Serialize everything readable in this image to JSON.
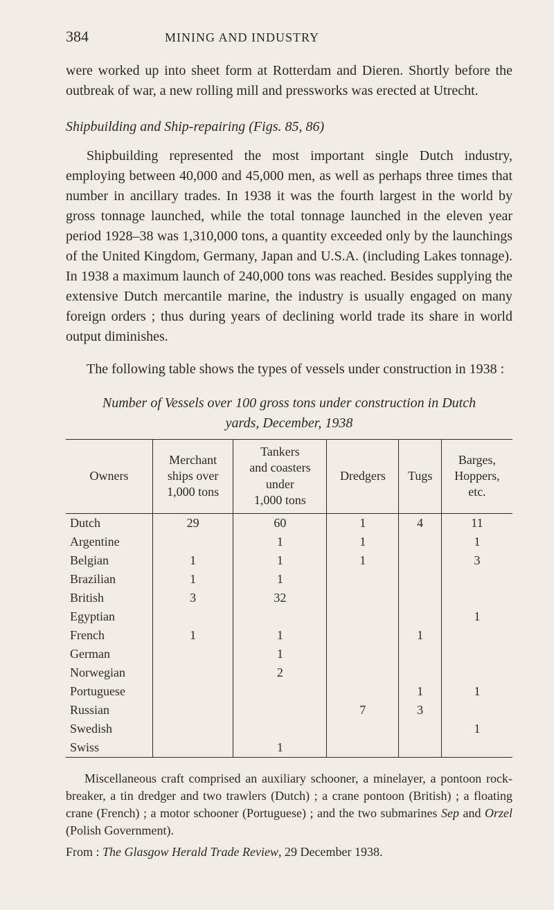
{
  "page_number": "384",
  "running_head": "MINING AND INDUSTRY",
  "para_intro": "were worked up into sheet form at Rotterdam and Dieren.   Shortly before the outbreak of war, a new rolling mill and pressworks was erected at Utrecht.",
  "section_heading_prefix": "Shipbuilding and Ship-repairing",
  "section_heading_suffix": "(Figs. 85, 86)",
  "para_body": "Shipbuilding represented the most important single Dutch industry, employing between 40,000 and 45,000 men, as well as perhaps three times that number in ancillary trades.   In 1938 it was the fourth largest in the world by gross tonnage launched, while the total tonnage launched in the eleven year period 1928–38 was 1,310,000 tons, a quantity exceeded only by the launchings of the United Kingdom, Germany, Japan and U.S.A. (including Lakes tonnage).   In 1938 a maximum launch of 240,000 tons was reached. Besides supplying the extensive Dutch mercantile marine, the industry is usually engaged on many foreign orders ;  thus during years of declining world trade its share in world output diminishes.",
  "para_body2": "The following table shows the types of vessels under construction in 1938 :",
  "table_caption": "Number of Vessels over 100 gross tons under construction in Dutch\nyards, December, 1938",
  "table": {
    "columns": [
      "Owners",
      "Merchant\nships over\n1,000 tons",
      "Tankers\nand coasters\nunder\n1,000 tons",
      "Dredgers",
      "Tugs",
      "Barges,\nHoppers,\netc."
    ],
    "rows": [
      [
        "Dutch",
        "29",
        "60",
        "1",
        "4",
        "11"
      ],
      [
        "Argentine",
        "",
        "1",
        "1",
        "",
        "1"
      ],
      [
        "Belgian",
        "1",
        "1",
        "1",
        "",
        "3"
      ],
      [
        "Brazilian",
        "1",
        "1",
        "",
        "",
        ""
      ],
      [
        "British",
        "3",
        "32",
        "",
        "",
        ""
      ],
      [
        "Egyptian",
        "",
        "",
        "",
        "",
        "1"
      ],
      [
        "French",
        "1",
        "1",
        "",
        "1",
        ""
      ],
      [
        "German",
        "",
        "1",
        "",
        "",
        ""
      ],
      [
        "Norwegian",
        "",
        "2",
        "",
        "",
        ""
      ],
      [
        "Portuguese",
        "",
        "",
        "",
        "1",
        "1"
      ],
      [
        "Russian",
        "",
        "",
        "7",
        "3",
        ""
      ],
      [
        "Swedish",
        "",
        "",
        "",
        "",
        "1"
      ],
      [
        "Swiss",
        "",
        "1",
        "",
        "",
        ""
      ]
    ],
    "border_color": "#2a2822",
    "background_color": "#f0ede4",
    "font_size_pt": 18,
    "col_align": [
      "left",
      "center",
      "center",
      "center",
      "center",
      "center"
    ]
  },
  "footnote1_a": "Miscellaneous craft comprised an auxiliary schooner, a minelayer, a pontoon rock-breaker, a tin dredger and two trawlers (Dutch) ;  a crane pontoon (British) ;  a floating crane (French) ;  a motor schooner (Portuguese) ;  and the two submarines ",
  "footnote1_b": "Sep",
  "footnote1_c": " and ",
  "footnote1_d": "Orzel",
  "footnote1_e": " (Polish Government).",
  "footnote2_a": "From :  ",
  "footnote2_b": "The Glasgow Herald Trade Review",
  "footnote2_c": ", 29 December 1938.",
  "style": {
    "page_bg": "#f0ede4",
    "text_color": "#2a2822",
    "body_font_size_pt": 20,
    "caption_font_size_pt": 20,
    "footnote_font_size_pt": 18
  }
}
